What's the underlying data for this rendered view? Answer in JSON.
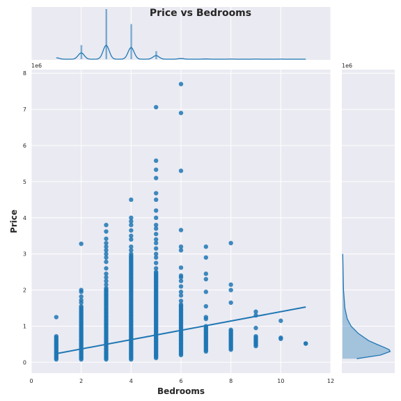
{
  "chart_data": {
    "type": "scatter",
    "title": "Price vs Bedrooms",
    "xlabel": "Bedrooms",
    "ylabel": "Price",
    "y_scale_label": "1e6",
    "marginal_scale_label": "1e6",
    "xlim": [
      0,
      12
    ],
    "ylim": [
      -0.3,
      8.1
    ],
    "x_ticks": [
      0,
      2,
      4,
      6,
      8,
      10,
      12
    ],
    "y_ticks": [
      0,
      1,
      2,
      3,
      4,
      5,
      6,
      7,
      8
    ],
    "grid": true,
    "colors": {
      "points": "#1f77b4",
      "background": "#eaeaf2",
      "grid": "#ffffff",
      "text": "#262626"
    },
    "series": [
      {
        "bedrooms": 1,
        "price_min": 0.08,
        "price_max": 0.72,
        "outliers": [
          1.25
        ]
      },
      {
        "bedrooms": 2,
        "price_min": 0.08,
        "price_max": 1.55,
        "outliers": [
          1.65,
          1.72,
          1.82,
          1.95,
          2.0,
          3.28
        ]
      },
      {
        "bedrooms": 3,
        "price_min": 0.08,
        "price_max": 2.05,
        "outliers": [
          2.15,
          2.25,
          2.35,
          2.45,
          2.6,
          2.78,
          2.9,
          3.0,
          3.1,
          3.2,
          3.3,
          3.42,
          3.62,
          3.8
        ]
      },
      {
        "bedrooms": 4,
        "price_min": 0.08,
        "price_max": 2.95,
        "outliers": [
          3.0,
          3.1,
          3.2,
          3.4,
          3.5,
          3.65,
          3.8,
          3.9,
          4.0,
          4.5
        ]
      },
      {
        "bedrooms": 5,
        "price_min": 0.12,
        "price_max": 2.5,
        "outliers": [
          2.6,
          2.75,
          2.9,
          3.0,
          3.15,
          3.3,
          3.4,
          3.55,
          3.7,
          3.8,
          4.0,
          4.2,
          4.5,
          4.68,
          5.1,
          5.33,
          5.58,
          7.06
        ]
      },
      {
        "bedrooms": 6,
        "price_min": 0.2,
        "price_max": 1.6,
        "outliers": [
          1.7,
          1.85,
          1.95,
          2.1,
          2.25,
          2.35,
          2.4,
          2.62,
          3.1,
          3.2,
          3.66,
          5.3,
          6.9,
          7.7
        ]
      },
      {
        "bedrooms": 7,
        "price_min": 0.3,
        "price_max": 1.0,
        "outliers": [
          1.2,
          1.25,
          1.55,
          1.95,
          2.3,
          2.45,
          2.9,
          3.2
        ]
      },
      {
        "bedrooms": 8,
        "price_min": 0.35,
        "price_max": 0.9,
        "outliers": [
          1.65,
          2.0,
          2.15,
          3.3
        ]
      },
      {
        "bedrooms": 9,
        "price_min": 0.45,
        "price_max": 0.72,
        "outliers": [
          0.95,
          1.3,
          1.4
        ]
      },
      {
        "bedrooms": 10,
        "price_min": 0.65,
        "price_max": 0.68,
        "outliers": [
          1.15
        ]
      },
      {
        "bedrooms": 11,
        "price_min": 0.52,
        "price_max": 0.52,
        "outliers": []
      }
    ],
    "regression_line": {
      "x": [
        1,
        11
      ],
      "y": [
        0.24,
        1.53
      ]
    },
    "top_marginal_kde": {
      "x": [
        1,
        2,
        3,
        4,
        5,
        6,
        7,
        8,
        9,
        10,
        11
      ],
      "relative_height": [
        0.06,
        0.28,
        0.62,
        0.52,
        0.16,
        0.03,
        0.01,
        0.005,
        0.003,
        0.002,
        0.001
      ],
      "bars": [
        {
          "x": 2,
          "relative_height": 0.28
        },
        {
          "x": 3,
          "relative_height": 1.0
        },
        {
          "x": 4,
          "relative_height": 0.7
        },
        {
          "x": 5,
          "relative_height": 0.16
        },
        {
          "x": 6,
          "relative_height": 0.02
        }
      ]
    },
    "right_marginal_kde": {
      "price": [
        0.1,
        0.2,
        0.3,
        0.35,
        0.4,
        0.5,
        0.6,
        0.8,
        1.0,
        1.2,
        1.5,
        2.0,
        3.0
      ],
      "relative_density": [
        0.3,
        0.8,
        1.0,
        0.98,
        0.9,
        0.72,
        0.55,
        0.33,
        0.18,
        0.1,
        0.05,
        0.02,
        0.005
      ]
    }
  }
}
